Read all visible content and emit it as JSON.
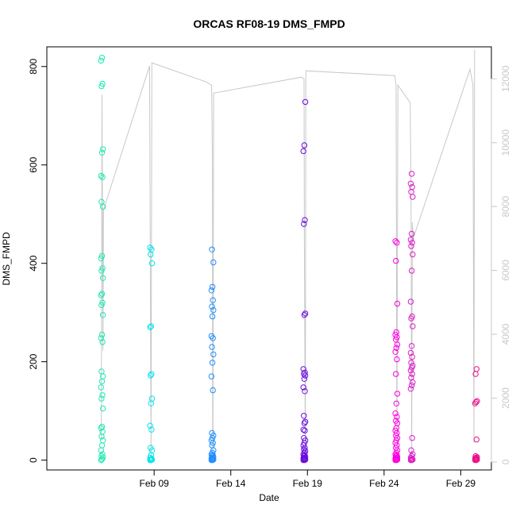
{
  "chart_data": {
    "type": "scatter",
    "title": "ORCAS RF08-19 DMS_FMPD",
    "xlabel": "Date",
    "ylabel": "DMS_FMPD",
    "xlim": [
      "2016-02-02",
      "2016-03-02"
    ],
    "ylim": [
      -20,
      840
    ],
    "y2lim": [
      -250,
      13000
    ],
    "x_ticks": [
      {
        "date": "2016-02-09",
        "label": "Feb 09"
      },
      {
        "date": "2016-02-14",
        "label": "Feb 14"
      },
      {
        "date": "2016-02-19",
        "label": "Feb 19"
      },
      {
        "date": "2016-02-24",
        "label": "Feb 24"
      },
      {
        "date": "2016-02-29",
        "label": "Feb 29"
      }
    ],
    "y_ticks": [
      0,
      200,
      400,
      600,
      800
    ],
    "y2_ticks": [
      0,
      2000,
      4000,
      6000,
      8000,
      10000,
      12000
    ],
    "y2_color": "#c8c8c8",
    "line_color": "#c8c8c8",
    "grid": false,
    "series": [
      {
        "date": "2016-02-05.6",
        "color": "#1de9b4",
        "y": [
          0,
          2,
          5,
          8,
          12,
          20,
          30,
          40,
          48,
          58,
          65,
          68,
          105,
          125,
          132,
          148,
          160,
          170,
          180,
          240,
          248,
          255,
          295,
          315,
          320,
          335,
          338,
          370,
          385,
          390,
          410,
          415,
          515,
          525,
          575,
          578,
          625,
          632,
          760,
          765,
          812,
          818
        ]
      },
      {
        "date": "2016-02-08.8",
        "color": "#00e5ee",
        "y": [
          0,
          0,
          1,
          2,
          3,
          5,
          10,
          20,
          25,
          62,
          70,
          115,
          125,
          172,
          175,
          270,
          272,
          400,
          418,
          428,
          432
        ]
      },
      {
        "date": "2016-02-12.8",
        "color": "#1e90ff",
        "y": [
          0,
          0,
          1,
          2,
          3,
          4,
          5,
          6,
          8,
          10,
          12,
          15,
          20,
          30,
          35,
          40,
          45,
          50,
          55,
          142,
          170,
          198,
          215,
          230,
          248,
          252,
          292,
          305,
          312,
          325,
          345,
          352,
          402,
          428
        ]
      },
      {
        "date": "2016-02-18.8",
        "color": "#6a0ddd",
        "y": [
          0,
          0,
          1,
          2,
          3,
          4,
          5,
          6,
          8,
          10,
          12,
          15,
          18,
          22,
          25,
          30,
          35,
          40,
          45,
          60,
          62,
          75,
          78,
          90,
          140,
          148,
          165,
          172,
          175,
          178,
          185,
          295,
          298,
          480,
          488,
          628,
          640,
          728
        ]
      },
      {
        "date": "2016-02-24.8",
        "color": "#ff00e0",
        "y": [
          0,
          0,
          1,
          2,
          3,
          4,
          5,
          6,
          8,
          10,
          12,
          15,
          20,
          25,
          30,
          35,
          40,
          45,
          50,
          55,
          60,
          65,
          75,
          80,
          88,
          95,
          115,
          135,
          175,
          205,
          220,
          228,
          235,
          245,
          250,
          255,
          260,
          318,
          405,
          442,
          445
        ]
      },
      {
        "date": "2016-02-25.8",
        "color": "#dc1fc8",
        "y": [
          0,
          0,
          1,
          2,
          3,
          5,
          8,
          12,
          20,
          45,
          145,
          152,
          158,
          168,
          175,
          182,
          188,
          192,
          198,
          210,
          218,
          232,
          272,
          288,
          292,
          322,
          385,
          418,
          435,
          442,
          448,
          460,
          535,
          545,
          555,
          562,
          582
        ]
      },
      {
        "date": "2016-03-01.0",
        "color": "#ee1289",
        "y": [
          0,
          0,
          1,
          2,
          3,
          4,
          5,
          6,
          8,
          42,
          115,
          118,
          120,
          175,
          185
        ]
      }
    ],
    "altitude_path": [
      [
        "2016-02-05.55",
        700
      ],
      [
        "2016-02-05.6",
        11500
      ],
      [
        "2016-02-05.62",
        9000
      ],
      [
        "2016-02-05.66",
        3500
      ],
      [
        "2016-02-05.7",
        7900
      ],
      [
        "2016-02-08.5",
        12100
      ],
      [
        "2016-02-08.7",
        12400
      ],
      [
        "2016-02-08.8",
        200
      ],
      [
        "2016-02-08.85",
        12500
      ],
      [
        "2016-02-12.4",
        11900
      ],
      [
        "2016-02-12.75",
        11800
      ],
      [
        "2016-02-12.8",
        9500
      ],
      [
        "2016-02-12.82",
        200
      ],
      [
        "2016-02-12.84",
        600
      ],
      [
        "2016-02-12.88",
        11550
      ],
      [
        "2016-02-18.6",
        12050
      ],
      [
        "2016-02-18.78",
        12000
      ],
      [
        "2016-02-18.8",
        7000
      ],
      [
        "2016-02-18.86",
        200
      ],
      [
        "2016-02-18.9",
        12250
      ],
      [
        "2016-02-24.7",
        12100
      ],
      [
        "2016-02-24.78",
        11800
      ],
      [
        "2016-02-24.8",
        8000
      ],
      [
        "2016-02-24.84",
        200
      ],
      [
        "2016-02-24.9",
        11800
      ],
      [
        "2016-02-25.7",
        11250
      ],
      [
        "2016-02-25.76",
        8400
      ],
      [
        "2016-02-25.8",
        200
      ],
      [
        "2016-02-25.84",
        7500
      ],
      [
        "2016-02-25.9",
        7000
      ],
      [
        "2016-02-29.6",
        12300
      ],
      [
        "2016-02-29.8",
        11800
      ],
      [
        "2016-02-29.86",
        600
      ],
      [
        "2016-02-29.9",
        12900
      ]
    ]
  }
}
